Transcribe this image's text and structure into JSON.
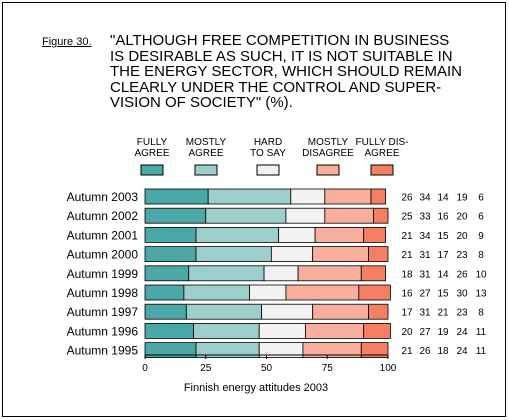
{
  "figure_label": "Figure 30.",
  "title": "\"ALTHOUGH FREE COMPETITION IN BUSINESS\nIS DESIRABLE AS SUCH, IT IS NOT SUITABLE IN\nTHE ENERGY SECTOR, WHICH SHOULD REMAIN\nCLEARLY UNDER THE CONTROL AND SUPER-\nVISION OF SOCIETY\" (%).",
  "chart_data": {
    "type": "bar",
    "stacked": true,
    "orientation": "horizontal",
    "categories": [
      "Autumn 2003",
      "Autumn 2002",
      "Autumn 2001",
      "Autumn 2000",
      "Autumn 1999",
      "Autumn 1998",
      "Autumn 1997",
      "Autumn 1996",
      "Autumn 1995"
    ],
    "series": [
      {
        "name": "FULLY AGREE",
        "values": [
          26,
          25,
          21,
          21,
          18,
          16,
          17,
          20,
          21
        ],
        "color": "#4aa8a6"
      },
      {
        "name": "MOSTLY AGREE",
        "values": [
          34,
          33,
          34,
          31,
          31,
          27,
          31,
          27,
          26
        ],
        "color": "#9ccfcc"
      },
      {
        "name": "HARD TO SAY",
        "values": [
          14,
          16,
          15,
          17,
          14,
          15,
          21,
          19,
          18
        ],
        "color": "#f2f2f2"
      },
      {
        "name": "MOSTLY DISAGREE",
        "values": [
          19,
          20,
          20,
          23,
          26,
          30,
          23,
          24,
          24
        ],
        "color": "#f8ae9d"
      },
      {
        "name": "FULLY DIS-AGREE",
        "values": [
          6,
          6,
          9,
          8,
          10,
          13,
          8,
          11,
          11
        ],
        "color": "#f47f63"
      }
    ],
    "legend_labels": [
      [
        "FULLY",
        "AGREE"
      ],
      [
        "MOSTLY",
        "AGREE"
      ],
      [
        "HARD",
        "TO SAY"
      ],
      [
        "MOSTLY",
        "DISAGREE"
      ],
      [
        "FULLY DIS-",
        "AGREE"
      ]
    ],
    "xticks": [
      "0",
      "25",
      "50",
      "75",
      "100"
    ],
    "xlim": [
      0,
      100
    ],
    "xlabel": "Finnish energy attitudes 2003",
    "legend_position": "top"
  }
}
